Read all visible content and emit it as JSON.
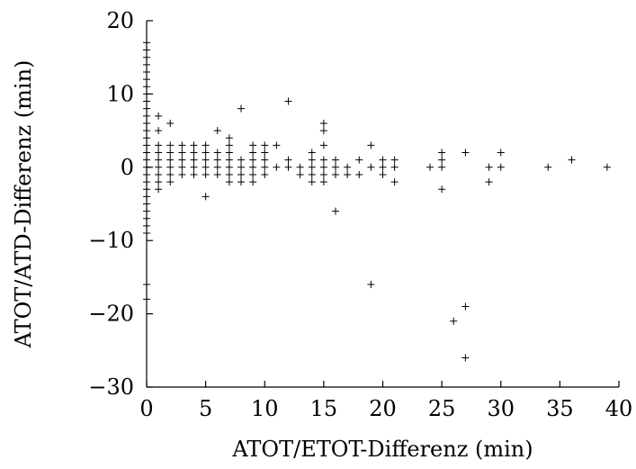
{
  "chart_data": {
    "type": "scatter",
    "title": "",
    "xlabel": "ATOT/ETOT-Differenz (min)",
    "ylabel": "ATOT/ATD-Differenz (min)",
    "xlim": [
      0,
      40
    ],
    "ylim": [
      -30,
      20
    ],
    "xticks": [
      0,
      5,
      10,
      15,
      20,
      25,
      30,
      35,
      40
    ],
    "yticks": [
      -30,
      -20,
      -10,
      0,
      10,
      20
    ],
    "xtick_labels": [
      "0",
      "5",
      "10",
      "15",
      "20",
      "25",
      "30",
      "35",
      "40"
    ],
    "ytick_labels": [
      "−30",
      "−20",
      "−10",
      "0",
      "10",
      "20"
    ],
    "grid": false,
    "legend": "none",
    "marker": "plus",
    "color": "#000000",
    "series": [
      {
        "points": [
          [
            0,
            -9
          ],
          [
            0,
            -8
          ],
          [
            0,
            -7
          ],
          [
            0,
            -6
          ],
          [
            0,
            -5
          ],
          [
            0,
            -4
          ],
          [
            0,
            -3
          ],
          [
            0,
            -2
          ],
          [
            0,
            -1
          ],
          [
            0,
            0
          ],
          [
            0,
            1
          ],
          [
            0,
            2
          ],
          [
            0,
            3
          ],
          [
            0,
            4
          ],
          [
            0,
            5
          ],
          [
            0,
            6
          ],
          [
            0,
            7
          ],
          [
            0,
            8
          ],
          [
            0,
            9
          ],
          [
            0,
            10
          ],
          [
            0,
            11
          ],
          [
            0,
            12
          ],
          [
            0,
            13
          ],
          [
            0,
            14
          ],
          [
            0,
            15
          ],
          [
            0,
            16
          ],
          [
            0,
            17
          ],
          [
            0,
            -16
          ],
          [
            0,
            -18
          ],
          [
            1,
            -3
          ],
          [
            1,
            -2
          ],
          [
            1,
            -1
          ],
          [
            1,
            0
          ],
          [
            1,
            1
          ],
          [
            1,
            2
          ],
          [
            1,
            3
          ],
          [
            1,
            5
          ],
          [
            1,
            7
          ],
          [
            2,
            -2
          ],
          [
            2,
            -1
          ],
          [
            2,
            0
          ],
          [
            2,
            1
          ],
          [
            2,
            2
          ],
          [
            2,
            3
          ],
          [
            2,
            6
          ],
          [
            3,
            -1
          ],
          [
            3,
            0
          ],
          [
            3,
            1
          ],
          [
            3,
            2
          ],
          [
            3,
            3
          ],
          [
            4,
            -1
          ],
          [
            4,
            0
          ],
          [
            4,
            1
          ],
          [
            4,
            2
          ],
          [
            4,
            3
          ],
          [
            5,
            -4
          ],
          [
            5,
            -1
          ],
          [
            5,
            0
          ],
          [
            5,
            1
          ],
          [
            5,
            2
          ],
          [
            5,
            3
          ],
          [
            6,
            -1
          ],
          [
            6,
            0
          ],
          [
            6,
            1
          ],
          [
            6,
            2
          ],
          [
            6,
            5
          ],
          [
            7,
            -2
          ],
          [
            7,
            -1
          ],
          [
            7,
            0
          ],
          [
            7,
            1
          ],
          [
            7,
            2
          ],
          [
            7,
            3
          ],
          [
            7,
            4
          ],
          [
            8,
            -2
          ],
          [
            8,
            -1
          ],
          [
            8,
            0
          ],
          [
            8,
            1
          ],
          [
            8,
            8
          ],
          [
            9,
            -2
          ],
          [
            9,
            -1
          ],
          [
            9,
            0
          ],
          [
            9,
            1
          ],
          [
            9,
            2
          ],
          [
            9,
            3
          ],
          [
            10,
            -1
          ],
          [
            10,
            0
          ],
          [
            10,
            1
          ],
          [
            10,
            2
          ],
          [
            10,
            3
          ],
          [
            11,
            0
          ],
          [
            11,
            3
          ],
          [
            12,
            0
          ],
          [
            12,
            1
          ],
          [
            12,
            9
          ],
          [
            13,
            -1
          ],
          [
            13,
            0
          ],
          [
            14,
            -2
          ],
          [
            14,
            -1
          ],
          [
            14,
            0
          ],
          [
            14,
            1
          ],
          [
            14,
            2
          ],
          [
            15,
            -2
          ],
          [
            15,
            -1
          ],
          [
            15,
            0
          ],
          [
            15,
            1
          ],
          [
            15,
            3
          ],
          [
            15,
            5
          ],
          [
            15,
            6
          ],
          [
            16,
            -6
          ],
          [
            16,
            -1
          ],
          [
            16,
            0
          ],
          [
            16,
            1
          ],
          [
            17,
            -1
          ],
          [
            17,
            0
          ],
          [
            18,
            -1
          ],
          [
            18,
            1
          ],
          [
            19,
            -16
          ],
          [
            19,
            0
          ],
          [
            19,
            3
          ],
          [
            20,
            -1
          ],
          [
            20,
            0
          ],
          [
            20,
            1
          ],
          [
            21,
            -2
          ],
          [
            21,
            0
          ],
          [
            21,
            1
          ],
          [
            24,
            0
          ],
          [
            25,
            -3
          ],
          [
            25,
            0
          ],
          [
            25,
            1
          ],
          [
            25,
            2
          ],
          [
            26,
            -21
          ],
          [
            27,
            -26
          ],
          [
            27,
            -19
          ],
          [
            27,
            2
          ],
          [
            29,
            -2
          ],
          [
            29,
            0
          ],
          [
            30,
            0
          ],
          [
            30,
            2
          ],
          [
            34,
            0
          ],
          [
            36,
            1
          ],
          [
            39,
            0
          ]
        ]
      }
    ]
  }
}
